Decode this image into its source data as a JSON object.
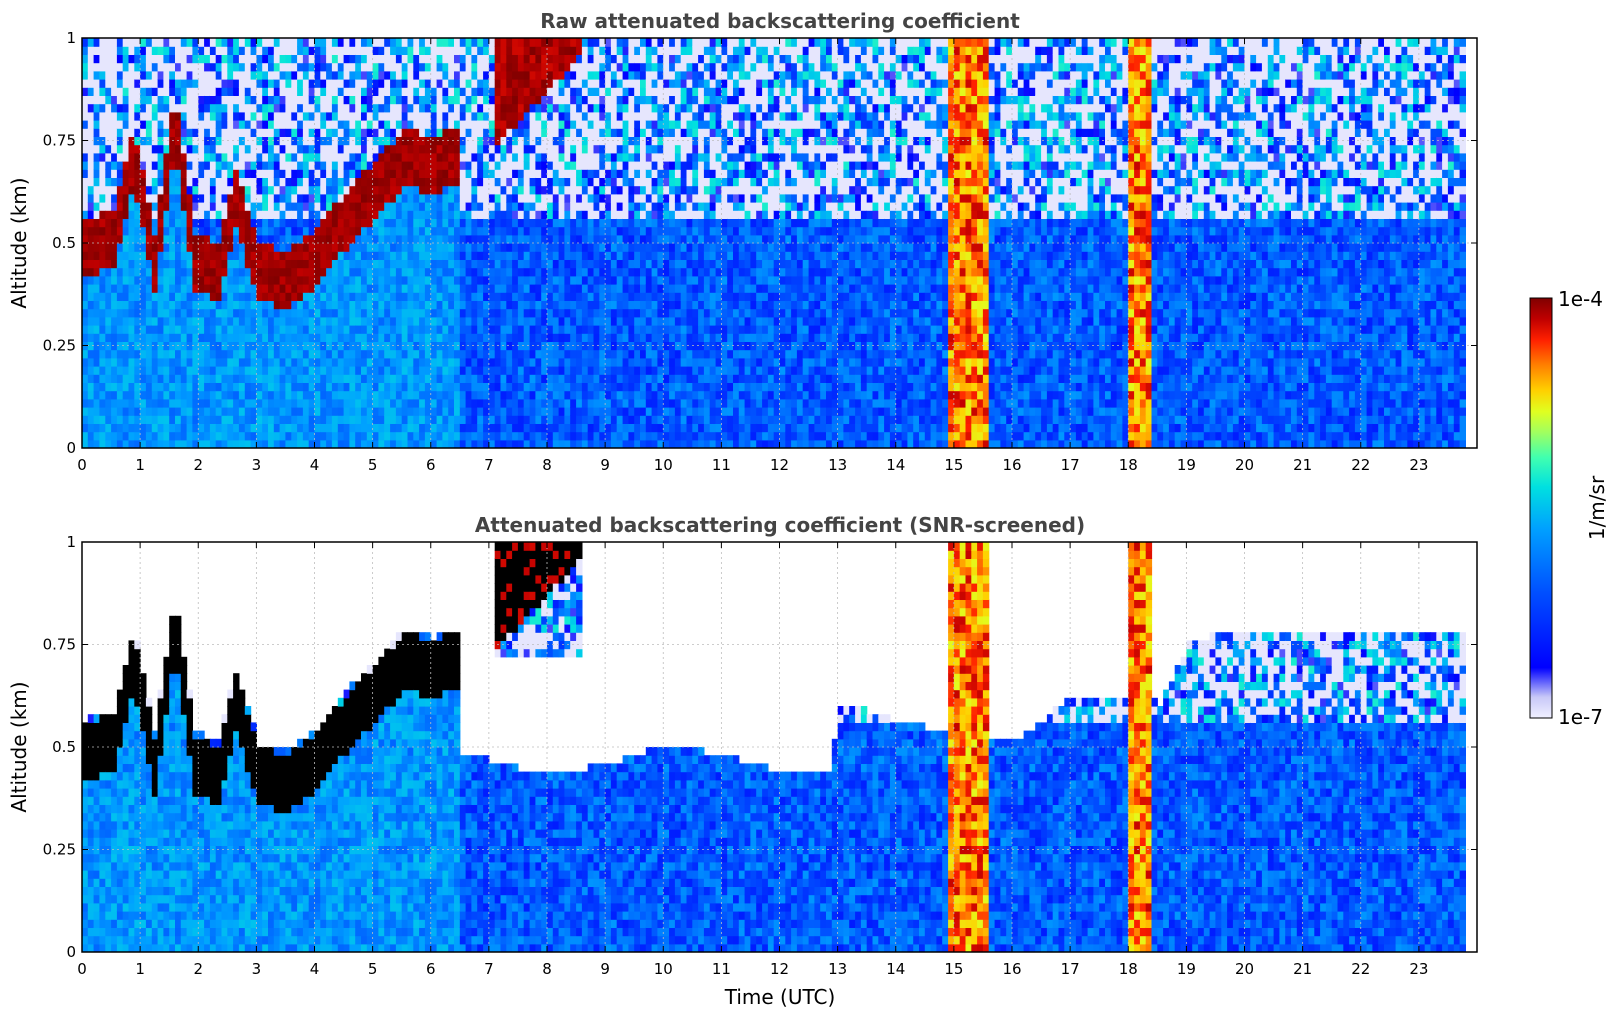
{
  "chart_data": [
    {
      "type": "heatmap",
      "title": "Raw attenuated backscattering coefficient",
      "xlabel": "",
      "ylabel": "Altitude (km)",
      "xlim": [
        0,
        24
      ],
      "ylim": [
        0,
        1
      ],
      "x_ticks": [
        "0",
        "1",
        "2",
        "3",
        "4",
        "5",
        "6",
        "7",
        "8",
        "9",
        "10",
        "11",
        "12",
        "13",
        "14",
        "15",
        "16",
        "17",
        "18",
        "19",
        "20",
        "21",
        "22",
        "23"
      ],
      "y_ticks": [
        "0",
        "0.25",
        "0.5",
        "0.75",
        "1"
      ],
      "grid": true,
      "data_end_hour": 23.75,
      "features": {
        "boundary_layer_top_km": [
          [
            0,
            0.48
          ],
          [
            0.5,
            0.5
          ],
          [
            0.85,
            0.7
          ],
          [
            1.2,
            0.45
          ],
          [
            1.55,
            0.78
          ],
          [
            1.9,
            0.45
          ],
          [
            2.3,
            0.42
          ],
          [
            2.6,
            0.6
          ],
          [
            3,
            0.42
          ],
          [
            3.5,
            0.4
          ],
          [
            4,
            0.45
          ],
          [
            4.5,
            0.55
          ],
          [
            5,
            0.62
          ],
          [
            5.5,
            0.7
          ],
          [
            6,
            0.68
          ],
          [
            6.3,
            0.7
          ]
        ],
        "cloud_layer": {
          "hours": [
            7.0,
            8.5
          ],
          "altitude_km": [
            0.7,
            1.0
          ]
        },
        "precipitation_columns_hours": [
          [
            14.8,
            15.5
          ],
          [
            17.9,
            18.3
          ]
        ]
      }
    },
    {
      "type": "heatmap",
      "title": "Attenuated backscattering coefficient (SNR-screened)",
      "xlabel": "Time (UTC)",
      "ylabel": "Altitude (km)",
      "xlim": [
        0,
        24
      ],
      "ylim": [
        0,
        1
      ],
      "x_ticks": [
        "0",
        "1",
        "2",
        "3",
        "4",
        "5",
        "6",
        "7",
        "8",
        "9",
        "10",
        "11",
        "12",
        "13",
        "14",
        "15",
        "16",
        "17",
        "18",
        "19",
        "20",
        "21",
        "22",
        "23"
      ],
      "y_ticks": [
        "0",
        "0.25",
        "0.5",
        "0.75",
        "1"
      ],
      "grid": true,
      "data_end_hour": 23.75,
      "screened_top_km": [
        [
          6.4,
          0.48
        ],
        [
          8,
          0.42
        ],
        [
          9,
          0.45
        ],
        [
          10,
          0.5
        ],
        [
          11,
          0.47
        ],
        [
          12,
          0.43
        ],
        [
          12.8,
          0.42
        ],
        [
          13,
          0.6
        ],
        [
          14,
          0.55
        ],
        [
          16,
          0.5
        ],
        [
          17,
          0.62
        ],
        [
          18.5,
          0.6
        ],
        [
          19,
          0.75
        ],
        [
          20,
          0.78
        ],
        [
          23.75,
          0.78
        ]
      ]
    }
  ],
  "colorbar": {
    "label": "1/m/sr",
    "max_label": "1e-4",
    "min_label": "1e-7",
    "scale": "log",
    "colormap": [
      "#f0f0ff",
      "#c8c8f8",
      "#0000ff",
      "#0050ff",
      "#00a0ff",
      "#00e0e0",
      "#40ffb0",
      "#a0ff60",
      "#e0ff20",
      "#ffd000",
      "#ff8000",
      "#ff2000",
      "#c00000",
      "#800000"
    ]
  }
}
